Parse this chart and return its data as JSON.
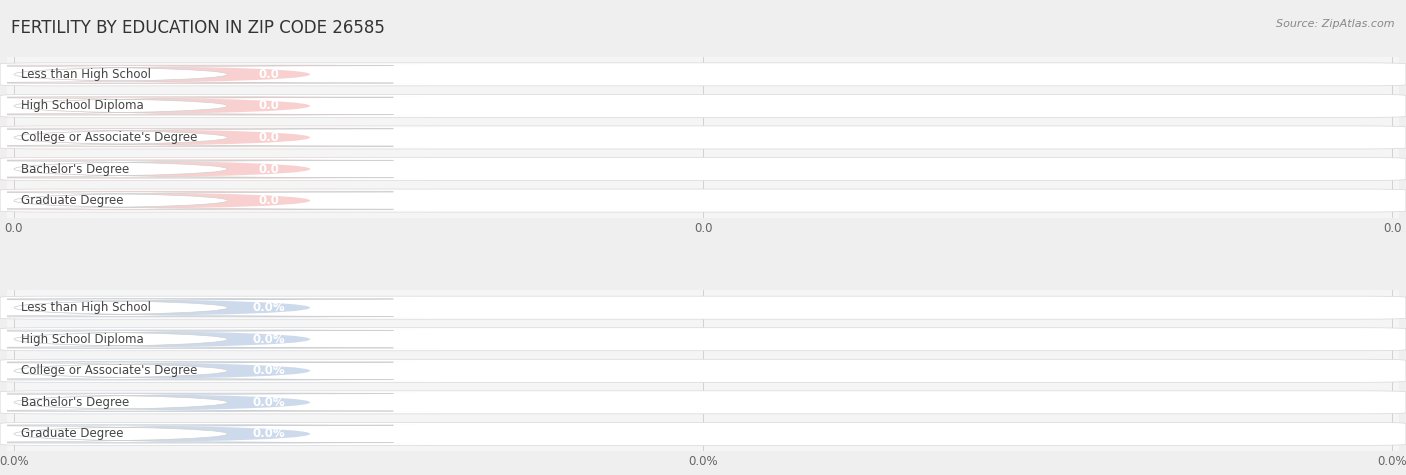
{
  "title": "FERTILITY BY EDUCATION IN ZIP CODE 26585",
  "source": "Source: ZipAtlas.com",
  "categories": [
    "Less than High School",
    "High School Diploma",
    "College or Associate's Degree",
    "Bachelor's Degree",
    "Graduate Degree"
  ],
  "top_values": [
    0.0,
    0.0,
    0.0,
    0.0,
    0.0
  ],
  "bottom_values": [
    0.0,
    0.0,
    0.0,
    0.0,
    0.0
  ],
  "top_bar_fill": "#f2a0a0",
  "top_bar_bg": "#f9d0d0",
  "bottom_bar_fill": "#a0bcd8",
  "bottom_bar_bg": "#ccdaec",
  "top_xticks": [
    "0.0",
    "0.0",
    "0.0"
  ],
  "bottom_xticks": [
    "0.0%",
    "0.0%",
    "0.0%"
  ],
  "background_color": "#efefef",
  "row_bg_color": "#ffffff",
  "panel_bg": "#f5f5f5",
  "title_fontsize": 12,
  "label_fontsize": 8.5,
  "value_fontsize": 8.5,
  "tick_fontsize": 8.5,
  "source_fontsize": 8
}
